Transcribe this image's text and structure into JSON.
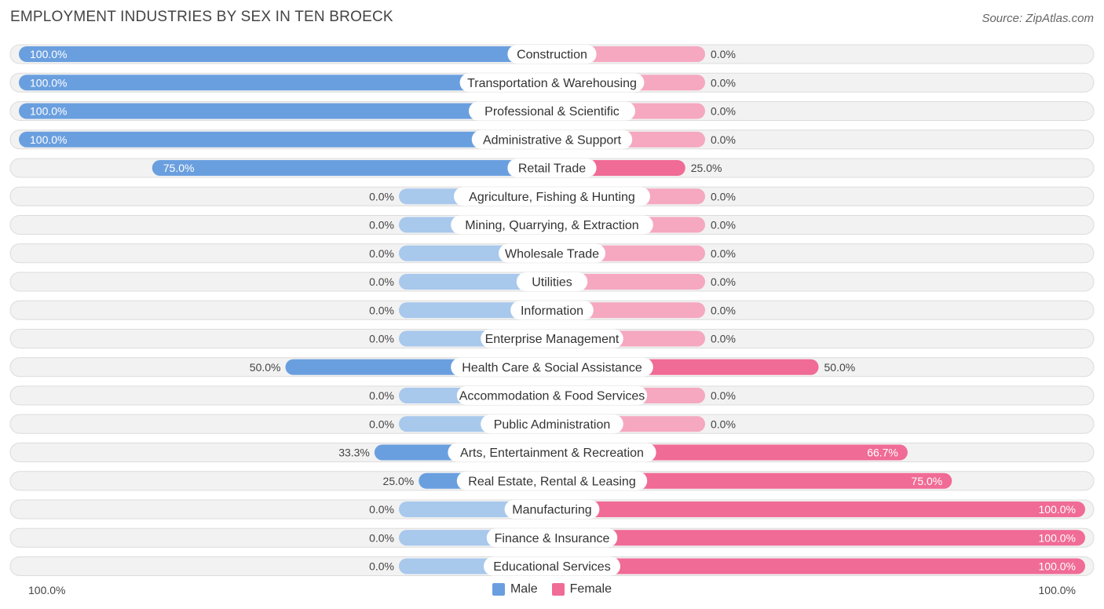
{
  "title": "EMPLOYMENT INDUSTRIES BY SEX IN TEN BROECK",
  "source": "Source: ZipAtlas.com",
  "colors": {
    "male": "#6a9fdf",
    "male_light": "#a8c8ec",
    "female": "#f06b95",
    "female_light": "#f5a8c0"
  },
  "legend": {
    "male": "Male",
    "female": "Female"
  },
  "axis": {
    "left": "100.0%",
    "right": "100.0%"
  },
  "chart_data": {
    "type": "bar",
    "orientation": "horizontal-diverging",
    "title": "EMPLOYMENT INDUSTRIES BY SEX IN TEN BROECK",
    "xlim": [
      -100,
      100
    ],
    "categories": [
      "Construction",
      "Transportation & Warehousing",
      "Professional & Scientific",
      "Administrative & Support",
      "Retail Trade",
      "Agriculture, Fishing & Hunting",
      "Mining, Quarrying, & Extraction",
      "Wholesale Trade",
      "Utilities",
      "Information",
      "Enterprise Management",
      "Health Care & Social Assistance",
      "Accommodation & Food Services",
      "Public Administration",
      "Arts, Entertainment & Recreation",
      "Real Estate, Rental & Leasing",
      "Manufacturing",
      "Finance & Insurance",
      "Educational Services"
    ],
    "series": [
      {
        "name": "Male",
        "values": [
          100.0,
          100.0,
          100.0,
          100.0,
          75.0,
          0.0,
          0.0,
          0.0,
          0.0,
          0.0,
          0.0,
          50.0,
          0.0,
          0.0,
          33.3,
          25.0,
          0.0,
          0.0,
          0.0
        ],
        "labels": [
          "100.0%",
          "100.0%",
          "100.0%",
          "100.0%",
          "75.0%",
          "0.0%",
          "0.0%",
          "0.0%",
          "0.0%",
          "0.0%",
          "0.0%",
          "50.0%",
          "0.0%",
          "0.0%",
          "33.3%",
          "25.0%",
          "0.0%",
          "0.0%",
          "0.0%"
        ]
      },
      {
        "name": "Female",
        "values": [
          0.0,
          0.0,
          0.0,
          0.0,
          25.0,
          0.0,
          0.0,
          0.0,
          0.0,
          0.0,
          0.0,
          50.0,
          0.0,
          0.0,
          66.7,
          75.0,
          100.0,
          100.0,
          100.0
        ],
        "labels": [
          "0.0%",
          "0.0%",
          "0.0%",
          "0.0%",
          "25.0%",
          "0.0%",
          "0.0%",
          "0.0%",
          "0.0%",
          "0.0%",
          "0.0%",
          "50.0%",
          "0.0%",
          "0.0%",
          "66.7%",
          "75.0%",
          "100.0%",
          "100.0%",
          "100.0%"
        ]
      }
    ]
  }
}
